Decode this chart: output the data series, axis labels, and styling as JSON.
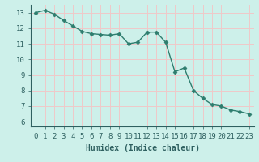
{
  "x": [
    0,
    1,
    2,
    3,
    4,
    5,
    6,
    7,
    8,
    9,
    10,
    11,
    12,
    13,
    14,
    15,
    16,
    17,
    18,
    19,
    20,
    21,
    22,
    23
  ],
  "y": [
    13.0,
    13.15,
    12.9,
    12.5,
    12.15,
    11.8,
    11.65,
    11.6,
    11.55,
    11.65,
    11.0,
    11.1,
    11.75,
    11.75,
    11.1,
    9.2,
    9.45,
    8.0,
    7.5,
    7.1,
    7.0,
    6.75,
    6.65,
    6.5
  ],
  "line_color": "#2e7d6e",
  "marker": "D",
  "markersize": 2.5,
  "linewidth": 1.0,
  "xlabel": "Humidex (Indice chaleur)",
  "xlim": [
    -0.5,
    23.5
  ],
  "ylim": [
    5.7,
    13.5
  ],
  "yticks": [
    6,
    7,
    8,
    9,
    10,
    11,
    12,
    13
  ],
  "xticks": [
    0,
    1,
    2,
    3,
    4,
    5,
    6,
    7,
    8,
    9,
    10,
    11,
    12,
    13,
    14,
    15,
    16,
    17,
    18,
    19,
    20,
    21,
    22,
    23
  ],
  "bg_color": "#cdf0ea",
  "grid_color": "#f0c8c8",
  "xlabel_fontsize": 7,
  "tick_fontsize": 6.5,
  "tick_color": "#2e6060",
  "xlabel_color": "#2e6060"
}
